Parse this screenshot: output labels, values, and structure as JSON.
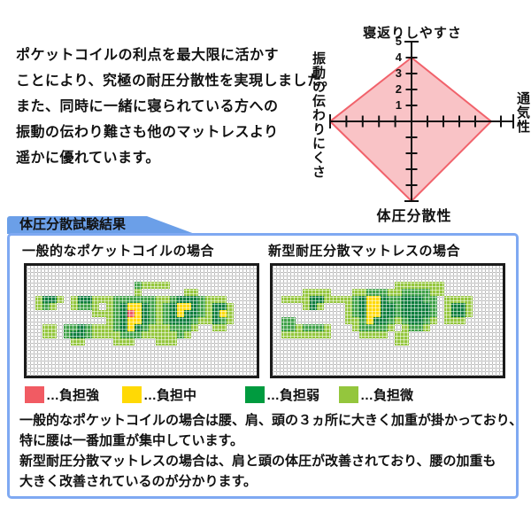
{
  "intro": {
    "lines": [
      "ポケットコイルの利点を最大限に活かす",
      "ことにより、究極の耐圧分散性を実現しました。",
      "また、同時に一緒に寝られている方への",
      "振動の伝わり難さも他のマットレスより",
      "遥かに優れています。"
    ]
  },
  "radar": {
    "label_top": "寝返りしやすさ",
    "label_right": "通気性",
    "label_bottom": "体圧分散性",
    "label_left": "振動の伝わりにくさ"
  },
  "chart_data": [
    {
      "type": "radar",
      "axes": [
        "寝返りしやすさ",
        "通気性",
        "体圧分散性",
        "振動の伝わりにくさ"
      ],
      "values": [
        4,
        5,
        5,
        5
      ],
      "max": 5,
      "scale_labels": [
        "5",
        "4",
        "3",
        "2",
        "1"
      ],
      "fill": "#F9C3C6",
      "stroke": "#F1626B"
    },
    {
      "type": "heatmap",
      "title": "一般的なポケットコイルの場合",
      "grid": [
        "................................",
        "................................",
        "...............gllll............",
        "...............l......ll........",
        ".lddl.lddlllggggggllgdddglll....",
        ".lgl..lggl.lgdyydglgdyydglddl...",
        ".........lllgdrydglgdyddgldyl...",
        "...........lgdyydglgdddglldgl...",
        "..ll.ggdglllgdydglllgggl..ll....",
        "..ll.gddgllllggglllllgl.........",
        "......ll....lll...lll...........",
        "................................",
        "................................",
        "................................",
        "................................"
      ]
    },
    {
      "type": "heatmap",
      "title": "新型耐圧分散マットレスの場合",
      "grid": [
        "................................",
        "................................",
        ".................lllllll........",
        "....llll...llgggllggggll........",
        ".llllddllllgdyydggdddgg.llll....",
        "....ldl...lgdyyddgddddg.lddl....",
        "..........lgdyyddgddddg.lddl....",
        ".gg.......llgyddglgddgl.lll.....",
        ".gglgggl...lggggl.lggl..........",
        ".lllllll....llll.ll.............",
        ".................ll.............",
        "................................",
        "................................",
        "................................",
        "................................"
      ]
    }
  ],
  "pressure_maps": {
    "palette": {
      "l": "#94C63D",
      "g": "#3FA148",
      "d": "#0D7D3D",
      "y": "#FFD905",
      "r": "#EF5660"
    }
  },
  "result_box": {
    "tab_title": "体圧分散試験結果",
    "legend": [
      {
        "swatch": "#F15B63",
        "label": "…負担強"
      },
      {
        "swatch": "#FFD905",
        "label": "…負担中"
      },
      {
        "swatch": "#009B3F",
        "label": "…負担弱"
      },
      {
        "swatch": "#94C63D",
        "label": "…負担微"
      }
    ],
    "body_lines": [
      "一般的なポケットコイルの場合は腰、肩、頭の３ヵ所に大きく加重が掛かっており、",
      "特に腰は一番加重が集中しています。",
      "新型耐圧分散マットレスの場合は、肩と頭の体圧が改善されており、腰の加重も",
      "大きく改善されているのが分かります。"
    ]
  },
  "colors": {
    "axis": "#111111",
    "tab_bg": "#6B9FE8",
    "box_border": "#7FA9F2"
  }
}
